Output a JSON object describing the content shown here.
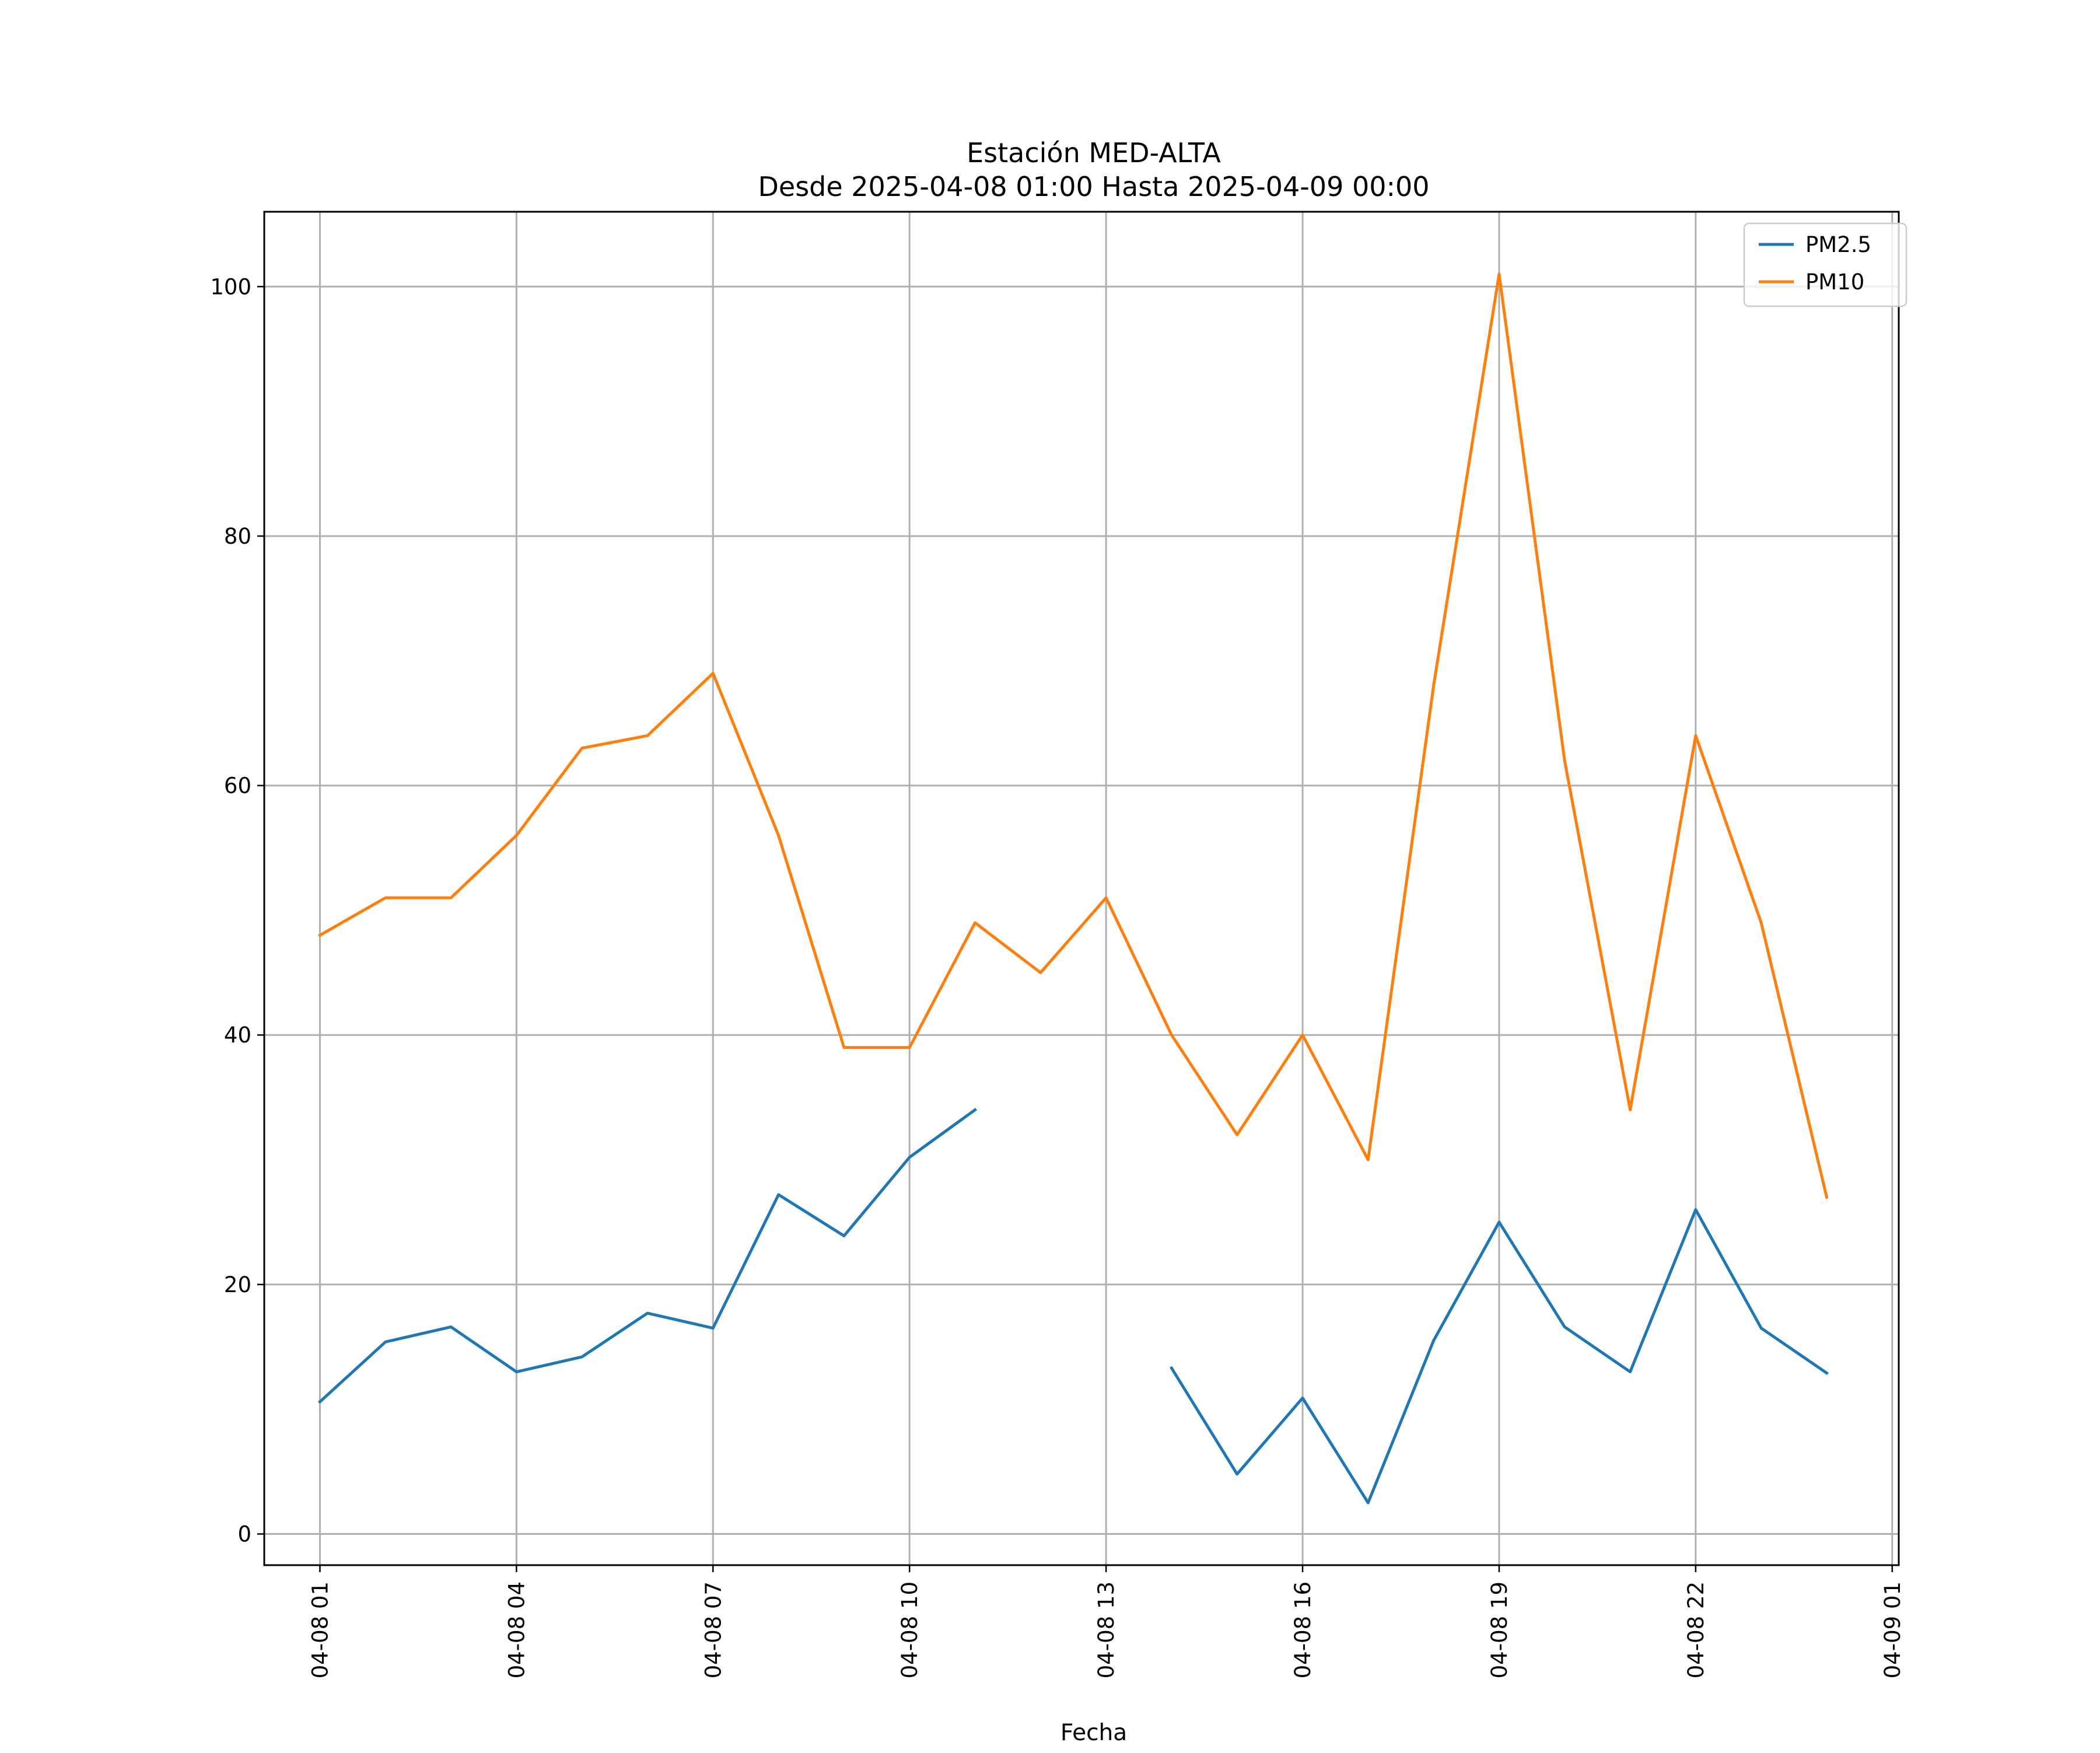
{
  "chart_data": {
    "type": "line",
    "title": "Estación MED-ALTA",
    "subtitle": "Desde 2025-04-08 01:00 Hasta 2025-04-09 00:00",
    "xlabel": "Fecha",
    "ylabel": "",
    "x": [
      "04-08 01",
      "04-08 02",
      "04-08 03",
      "04-08 04",
      "04-08 05",
      "04-08 06",
      "04-08 07",
      "04-08 08",
      "04-08 09",
      "04-08 10",
      "04-08 11",
      "04-08 12",
      "04-08 13",
      "04-08 14",
      "04-08 15",
      "04-08 16",
      "04-08 17",
      "04-08 18",
      "04-08 19",
      "04-08 20",
      "04-08 21",
      "04-08 22",
      "04-08 23",
      "04-09 00"
    ],
    "x_tick_labels": [
      "04-08 01",
      "04-08 04",
      "04-08 07",
      "04-08 10",
      "04-08 13",
      "04-08 16",
      "04-08 19",
      "04-08 22",
      "04-09 01"
    ],
    "y_ticks": [
      0,
      20,
      40,
      60,
      80,
      100
    ],
    "xlim": [
      "04-08 00:09",
      "04-09 01:06"
    ],
    "ylim": [
      -2.5,
      106
    ],
    "grid": true,
    "legend": "top-right",
    "series": [
      {
        "name": "PM2.5",
        "color": "#1f77b4",
        "values": [
          10.6,
          15.4,
          16.6,
          13.0,
          14.2,
          17.7,
          16.5,
          27.2,
          23.9,
          30.2,
          34.0,
          null,
          null,
          13.3,
          4.8,
          10.9,
          2.5,
          15.5,
          25.0,
          16.6,
          13.0,
          26.0,
          16.5,
          12.9
        ]
      },
      {
        "name": "PM10",
        "color": "#ff7f0e",
        "values": [
          48,
          51,
          51,
          56,
          63,
          64,
          69,
          56,
          39,
          39,
          49,
          45,
          51,
          40,
          32,
          40,
          30,
          68,
          101,
          62,
          34,
          64,
          49,
          27
        ]
      }
    ]
  }
}
